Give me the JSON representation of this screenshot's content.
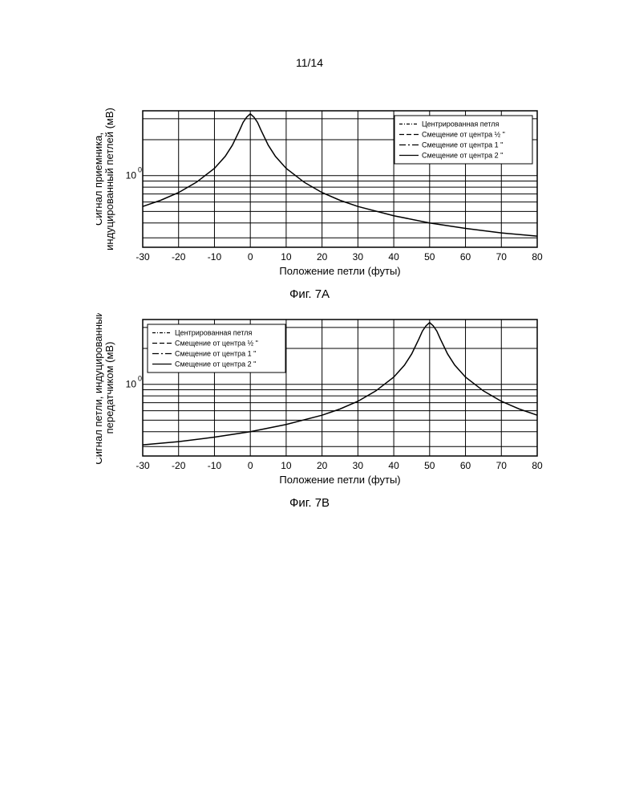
{
  "page_number": "11/14",
  "chartA": {
    "type": "line",
    "caption": "Фиг. 7A",
    "ylabel": "Сигнал приемника,\nиндуцированный петлей (мВ)",
    "xlabel": "Положение петли (футы)",
    "xlim": [
      -30,
      80
    ],
    "xticks": [
      -30,
      -20,
      -10,
      0,
      10,
      20,
      30,
      40,
      50,
      60,
      70,
      80
    ],
    "yscale": "log",
    "ylim": [
      0.25,
      3.5
    ],
    "yticks_major": [
      1
    ],
    "yticks_major_labels": [
      "10"
    ],
    "yticks_exponent": "0",
    "background_color": "#ffffff",
    "grid_color": "#000000",
    "grid_width": 1,
    "axis_color": "#000000",
    "tick_fontsize": 12,
    "label_fontsize": 13,
    "peak_x": 0,
    "series_color": "#000000",
    "series_width": 1.5,
    "data": {
      "x": [
        -30,
        -25,
        -20,
        -15,
        -10,
        -7,
        -5,
        -3,
        -2,
        -1,
        0,
        1,
        2,
        3,
        5,
        7,
        10,
        15,
        20,
        25,
        30,
        40,
        50,
        60,
        70,
        80
      ],
      "y": [
        0.55,
        0.62,
        0.72,
        0.88,
        1.15,
        1.45,
        1.8,
        2.4,
        2.8,
        3.1,
        3.3,
        3.1,
        2.8,
        2.4,
        1.8,
        1.45,
        1.15,
        0.88,
        0.72,
        0.62,
        0.55,
        0.46,
        0.4,
        0.36,
        0.33,
        0.31
      ]
    },
    "legend": {
      "position": "top-right",
      "border_color": "#000000",
      "bg_color": "#ffffff",
      "fontsize": 9,
      "items": [
        {
          "label": "Центрированная петля",
          "dash": [
            4,
            2,
            1,
            2
          ]
        },
        {
          "label": "Смещение от центра ½ \"",
          "dash": [
            6,
            3
          ]
        },
        {
          "label": "Смещение от центра 1 \"",
          "dash": [
            8,
            3,
            2,
            3
          ]
        },
        {
          "label": "Смещение от центра 2 \"",
          "dash": []
        }
      ]
    }
  },
  "chartB": {
    "type": "line",
    "caption": "Фиг. 7B",
    "ylabel": "Сигнал петли, индуцированный\nпередатчиком (мВ)",
    "xlabel": "Положение петли (футы)",
    "xlim": [
      -30,
      80
    ],
    "xticks": [
      -30,
      -20,
      -10,
      0,
      10,
      20,
      30,
      40,
      50,
      60,
      70,
      80
    ],
    "yscale": "log",
    "ylim": [
      0.25,
      3.5
    ],
    "yticks_major": [
      1
    ],
    "yticks_major_labels": [
      "10"
    ],
    "yticks_exponent": "0",
    "background_color": "#ffffff",
    "grid_color": "#000000",
    "grid_width": 1,
    "axis_color": "#000000",
    "tick_fontsize": 12,
    "label_fontsize": 13,
    "peak_x": 50,
    "series_color": "#000000",
    "series_width": 1.5,
    "data": {
      "x": [
        -30,
        -20,
        -10,
        0,
        10,
        20,
        25,
        30,
        35,
        40,
        43,
        45,
        47,
        48,
        49,
        50,
        51,
        52,
        53,
        55,
        57,
        60,
        65,
        70,
        75,
        80
      ],
      "y": [
        0.31,
        0.33,
        0.36,
        0.4,
        0.46,
        0.55,
        0.62,
        0.72,
        0.88,
        1.15,
        1.45,
        1.8,
        2.4,
        2.8,
        3.1,
        3.3,
        3.1,
        2.8,
        2.4,
        1.8,
        1.45,
        1.15,
        0.88,
        0.72,
        0.62,
        0.55
      ]
    },
    "legend": {
      "position": "top-left",
      "border_color": "#000000",
      "bg_color": "#ffffff",
      "fontsize": 9,
      "items": [
        {
          "label": "Центрированная петля",
          "dash": [
            4,
            2,
            1,
            2
          ]
        },
        {
          "label": "Смещение от центра ½ \"",
          "dash": [
            6,
            3
          ]
        },
        {
          "label": "Смещение от центра 1 \"",
          "dash": [
            8,
            3,
            2,
            3
          ]
        },
        {
          "label": "Смещение от центра 2 \"",
          "dash": []
        }
      ]
    }
  }
}
